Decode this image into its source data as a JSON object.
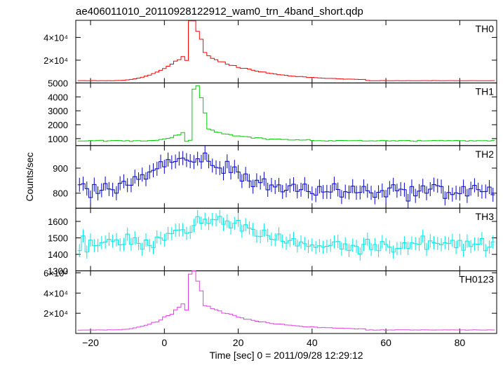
{
  "chart_data": {
    "type": "line",
    "title": "ae406011010_20110928122912_wam0_trn_4band_short.qdp",
    "xlabel": "Time [sec] 0 = 2011/09/28 12:29:12",
    "ylabel": "Counts/sec",
    "xlim": [
      -24,
      90
    ],
    "x_ticks": [
      -20,
      0,
      20,
      40,
      60,
      80
    ],
    "x_tick_labels": [
      "−20",
      "0",
      "20",
      "40",
      "60",
      "80"
    ],
    "bin_width": 1,
    "panels": [
      {
        "name": "TH0",
        "color": "#ff0000",
        "errorbars": false,
        "ylim": [
          0,
          55000
        ],
        "yticks": [
          20000,
          40000
        ],
        "ytick_labels": [
          "2×10⁴",
          "4×10⁴"
        ],
        "profile": {
          "base": 2000,
          "rise_start": -14,
          "rise_peak": 8,
          "prerise": 30000,
          "peak": 55000,
          "dip_at": 6,
          "dip_depth": 0.78,
          "decay_tail": 18000,
          "decay_end": 55
        }
      },
      {
        "name": "TH1",
        "color": "#00cc00",
        "errorbars": false,
        "ylim": [
          500,
          5000
        ],
        "yticks": [
          1000,
          2000,
          3000,
          4000,
          5000
        ],
        "ytick_labels": [
          "1000",
          "2000",
          "3000",
          "4000",
          "5000"
        ],
        "profile": {
          "base": 850,
          "rise_start": -6,
          "rise_peak": 9,
          "prerise": 1800,
          "peak": 4900,
          "dip_at": 6,
          "dip_depth": 0.55,
          "decay_tail": 1200,
          "decay_end": 40
        }
      },
      {
        "name": "TH2",
        "color": "#0000cc",
        "errorbars": true,
        "ylim": [
          740,
          990
        ],
        "yticks": [
          800,
          900
        ],
        "ytick_labels": [
          "800",
          "900"
        ],
        "profile": {
          "base": 810,
          "amp": 120,
          "center": 8,
          "width": 16,
          "noise": 30,
          "err": 28
        }
      },
      {
        "name": "TH3",
        "color": "#00e5e5",
        "errorbars": true,
        "ylim": [
          1300,
          1680
        ],
        "yticks": [
          1300,
          1400,
          1500,
          1600
        ],
        "ytick_labels": [
          "1300",
          "1400",
          "1500",
          "1600"
        ],
        "profile": {
          "base": 1460,
          "amp": 140,
          "center": 14,
          "width": 14,
          "noise": 45,
          "err": 40
        }
      },
      {
        "name": "TH0123",
        "color": "#e040e0",
        "errorbars": false,
        "ylim": [
          0,
          62000
        ],
        "yticks": [
          20000,
          40000,
          60000
        ],
        "ytick_labels": [
          "2×10⁴",
          "4×10⁴",
          "6×10⁴"
        ],
        "profile": {
          "base": 3500,
          "rise_start": -14,
          "rise_peak": 8,
          "prerise": 36000,
          "peak": 61000,
          "dip_at": 6,
          "dip_depth": 0.78,
          "decay_tail": 20000,
          "decay_end": 55
        }
      }
    ]
  }
}
